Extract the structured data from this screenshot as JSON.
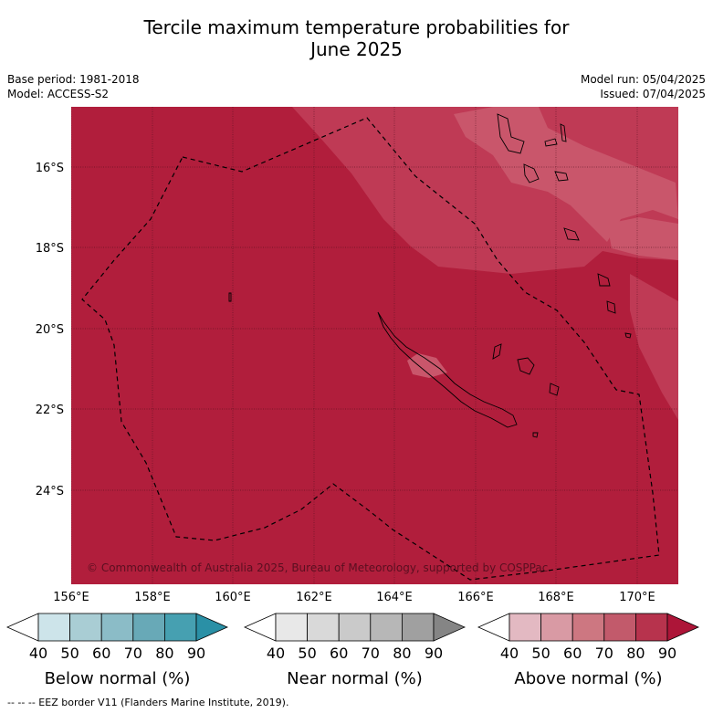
{
  "title_line1": "Tercile maximum temperature probabilities for",
  "title_line2": "June 2025",
  "meta_left": [
    "Base period: 1981-2018",
    "Model: ACCESS-S2"
  ],
  "meta_right": [
    "Model run: 05/04/2025",
    "Issued: 07/04/2025"
  ],
  "map": {
    "lat_labels": [
      "16°S",
      "18°S",
      "20°S",
      "22°S",
      "24°S"
    ],
    "lon_labels": [
      "156°E",
      "158°E",
      "160°E",
      "162°E",
      "164°E",
      "166°E",
      "168°E",
      "170°E"
    ],
    "copyright": "© Commonwealth of Australia 2025, Bureau of Meteorology, supported by COSPPac",
    "colors": {
      "above_80_90": "#b11e3c",
      "above_70_80": "#bf3a55",
      "above_60_70": "#c9566b"
    }
  },
  "colorbars": [
    {
      "title": "Below normal (%)",
      "ticks": [
        "40",
        "50",
        "60",
        "70",
        "80",
        "90"
      ],
      "colors": [
        "#ffffff",
        "#cde4ea",
        "#a9cdd4",
        "#8bbcc7",
        "#68a9b7",
        "#46a0b1",
        "#2a90a6"
      ]
    },
    {
      "title": "Near normal (%)",
      "ticks": [
        "40",
        "50",
        "60",
        "70",
        "80",
        "90"
      ],
      "colors": [
        "#ffffff",
        "#e8e8e8",
        "#d9d9d9",
        "#cacaca",
        "#b7b7b7",
        "#a0a0a0",
        "#858585"
      ]
    },
    {
      "title": "Above normal (%)",
      "ticks": [
        "40",
        "50",
        "60",
        "70",
        "80",
        "90"
      ],
      "colors": [
        "#ffffff",
        "#e3b9c2",
        "#d99aa4",
        "#cd7781",
        "#c25a6b",
        "#b7334d",
        "#ad1538"
      ]
    }
  ],
  "footnote": "-- -- -- EEZ border V11 (Flanders Marine Institute, 2019)."
}
